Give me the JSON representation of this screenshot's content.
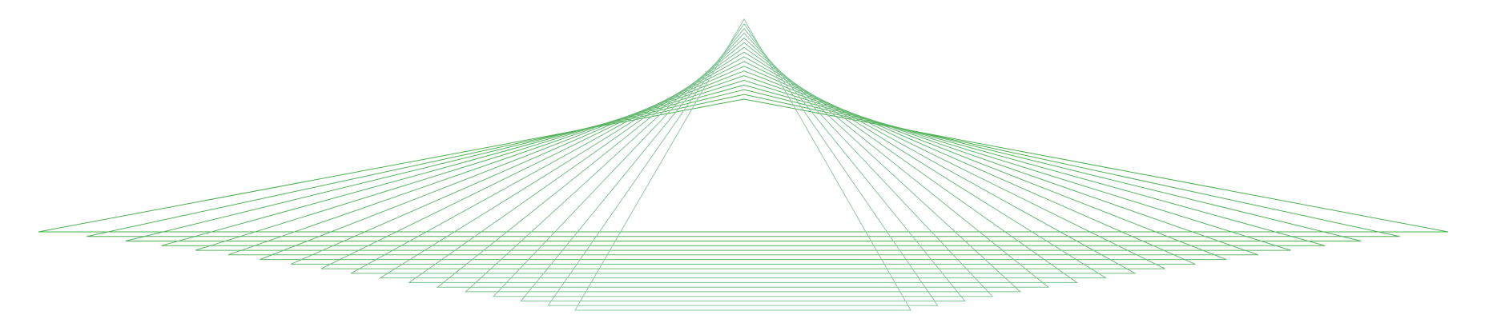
{
  "artwork": {
    "description_icon": "string-art-triangle-fan",
    "triangle_count": 18,
    "colors": {
      "background": "#ffffff",
      "stroke_outer": "#4caf50",
      "stroke_inner": "#8fc7a6"
    }
  }
}
